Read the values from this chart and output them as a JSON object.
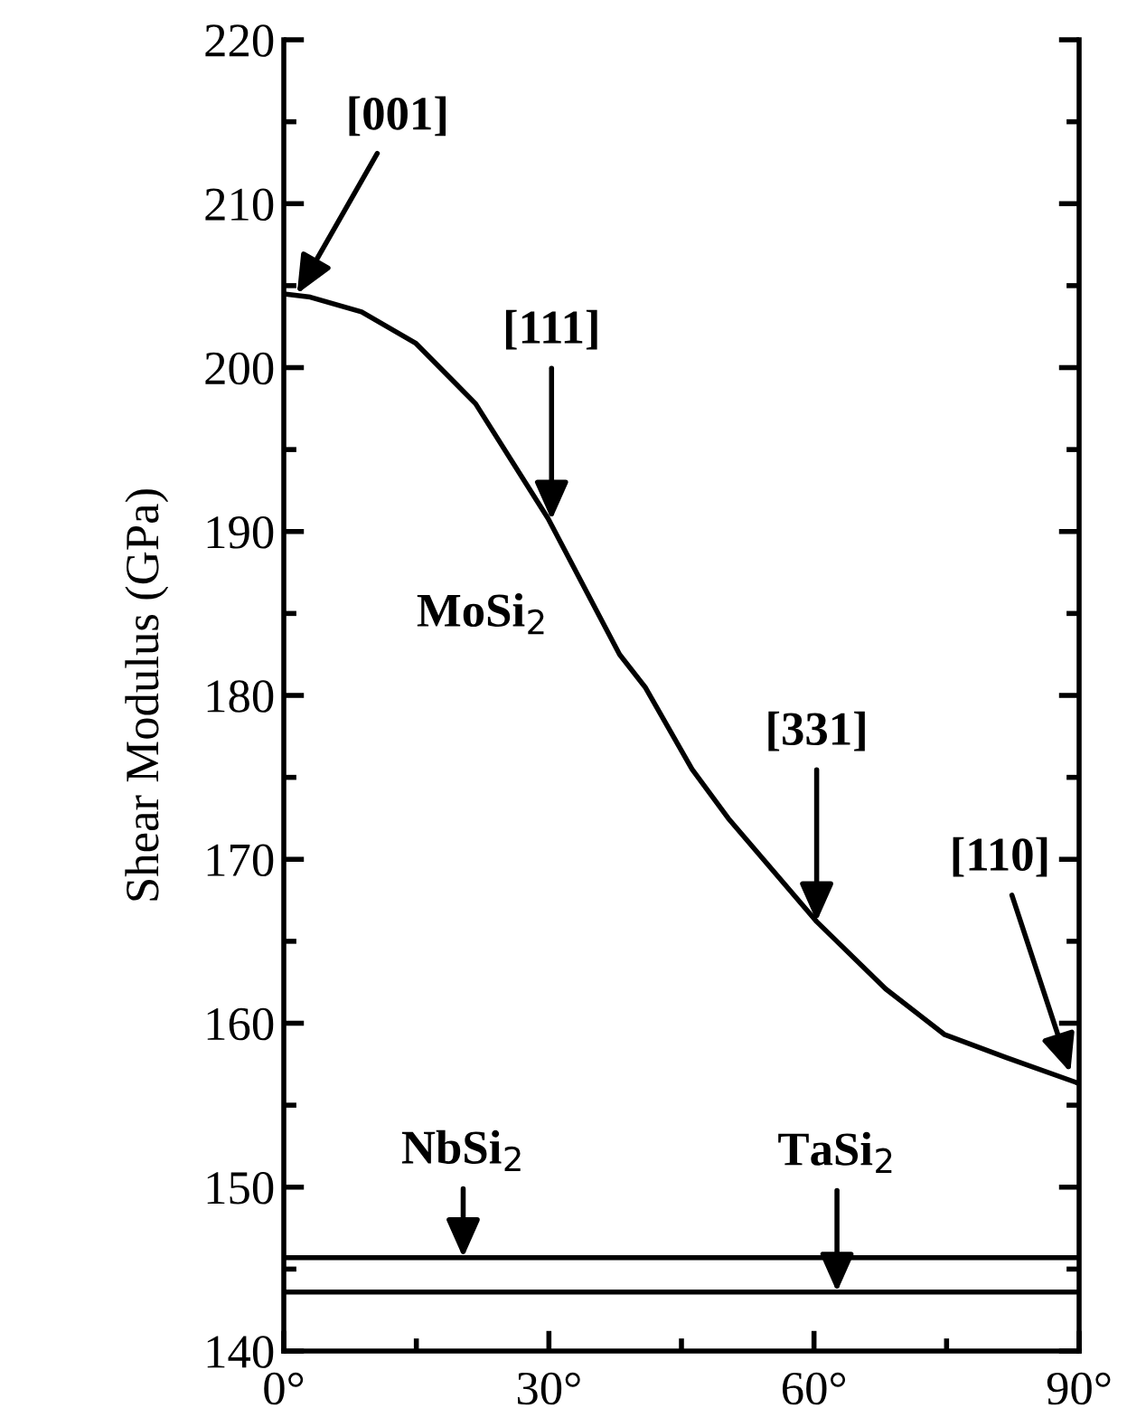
{
  "chart_data": {
    "type": "line",
    "ylabel": "Shear Modulus (GPa)",
    "xlim": [
      0,
      90
    ],
    "ylim": [
      140,
      220
    ],
    "xticks": [
      {
        "value": 0,
        "label": "0°"
      },
      {
        "value": 30,
        "label": "30°"
      },
      {
        "value": 60,
        "label": "60°"
      },
      {
        "value": 90,
        "label": "90°"
      }
    ],
    "yticks": [
      140,
      150,
      160,
      170,
      180,
      190,
      200,
      210,
      220
    ],
    "grid": false,
    "legend": false,
    "marker": "none",
    "line_style": "solid",
    "series": [
      {
        "color": "#000000",
        "x": [
          0,
          3,
          8.8,
          14.9,
          21.7,
          29.9,
          38,
          40.9,
          46.2,
          50.3,
          60.3,
          68.1,
          74.8,
          81.8,
          89.6,
          90
        ],
        "values": [
          204.5,
          204.3,
          203.4,
          201.5,
          197.8,
          190.8,
          182.5,
          180.5,
          175.5,
          172.5,
          166.2,
          162.1,
          159.3,
          157.9,
          156.4,
          156.3
        ]
      }
    ],
    "ref_lines": [
      {
        "axis": "y",
        "value": 145.7,
        "color": "#000000"
      },
      {
        "axis": "y",
        "value": 143.6,
        "color": "#000000"
      }
    ],
    "annotations": [
      {
        "text": "[001]",
        "x": 1.5,
        "y": 204.5
      },
      {
        "text": "[111]",
        "x": 30.3,
        "y": 190.7
      },
      {
        "text": "[331]",
        "x": 60.3,
        "y": 166.2
      },
      {
        "text": "[110]",
        "x": 89,
        "y": 157
      },
      {
        "text": "NbSi$_{2}$",
        "x": 20.3,
        "y": 145.7
      },
      {
        "text": "TaSi$_{2}$",
        "x": 62.6,
        "y": 143.6
      },
      "MoSi$_{2}$"
    ]
  }
}
